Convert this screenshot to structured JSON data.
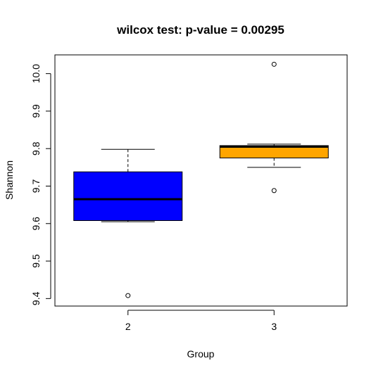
{
  "chart_data": {
    "type": "boxplot",
    "title": "wilcox test: p-value = 0.00295",
    "xlabel": "Group",
    "ylabel": "Shannon",
    "ylim": [
      9.38,
      10.05
    ],
    "y_ticks": [
      9.4,
      9.5,
      9.6,
      9.7,
      9.8,
      9.9,
      10.0
    ],
    "y_tick_labels": [
      "9.4",
      "9.5",
      "9.6",
      "9.7",
      "9.8",
      "9.9",
      "10.0"
    ],
    "categories": [
      "2",
      "3"
    ],
    "groups": [
      {
        "category": "2",
        "color": "#0000ff",
        "whisker_low": 9.605,
        "q1": 9.608,
        "median": 9.665,
        "q3": 9.738,
        "whisker_high": 9.798,
        "outliers": [
          9.408
        ]
      },
      {
        "category": "3",
        "color": "#ffa500",
        "whisker_low": 9.75,
        "q1": 9.775,
        "median": 9.805,
        "q3": 9.808,
        "whisker_high": 9.812,
        "outliers": [
          9.688,
          10.025
        ]
      }
    ]
  }
}
